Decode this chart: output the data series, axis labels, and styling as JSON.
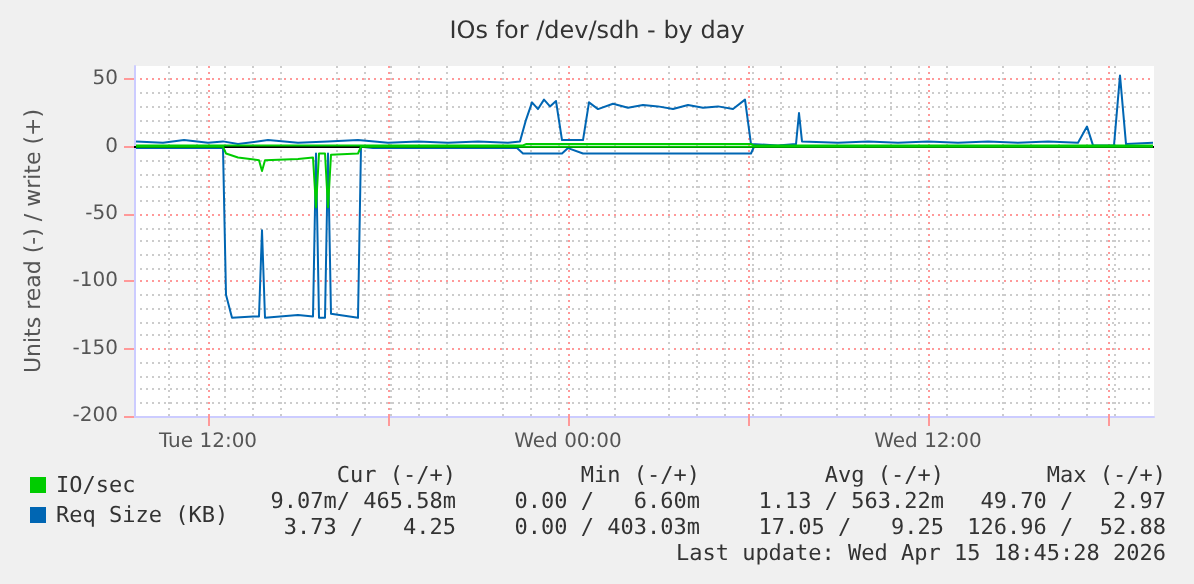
{
  "chart_data": {
    "type": "line",
    "title": "IOs for /dev/sdh - by day",
    "ylabel": "Units read (-) / write (+)",
    "xlim": [
      "2026-04-14T09:32",
      "2026-04-15T19:32"
    ],
    "xticks": [
      {
        "value": "2026-04-14T12:00",
        "label": "Tue 12:00"
      },
      {
        "value": "2026-04-14T18:00",
        "label": null
      },
      {
        "value": "2026-04-15T00:00",
        "label": "Wed 00:00"
      },
      {
        "value": "2026-04-15T06:00",
        "label": null
      },
      {
        "value": "2026-04-15T12:00",
        "label": "Wed 12:00"
      },
      {
        "value": "2026-04-15T18:00",
        "label": null
      }
    ],
    "ylim": [
      -200,
      60
    ],
    "yticks": [
      -200,
      -150,
      -100,
      -50,
      0,
      50
    ],
    "grid": true,
    "legend": "bottom left",
    "marker": "none",
    "line_style": "solid",
    "ref_lines": [
      {
        "axis": "y",
        "value": 0,
        "color": "#000000"
      }
    ],
    "annotations": [
      "Cur (-/+)",
      "Min (-/+)",
      "Avg (-/+)",
      "Max (-/+)",
      "9.07m/ 465.58m",
      "0.00 /   6.60m",
      "1.13 / 563.22m",
      "49.70 /   2.97",
      "3.73 /   4.25",
      "0.00 / 403.03m",
      "17.05 /   9.25",
      "126.96 /  52.88",
      "Last update: Wed Apr 15 18:45:28 2026"
    ],
    "series": [
      {
        "name": "IO/sec",
        "color": "#00cc00",
        "x": [
          "2026-04-14T09:36",
          "2026-04-14T22:30",
          "2026-04-14T22:36",
          "2026-04-15T06:06",
          "2026-04-15T06:12",
          "2026-04-15T19:30"
        ],
        "values": [
          1,
          1,
          2,
          2,
          1,
          1
        ]
      },
      {
        "color": "#00cc00",
        "x": [
          "2026-04-14T09:36",
          "2026-04-14T12:30",
          "2026-04-14T12:36",
          "2026-04-14T13:00",
          "2026-04-14T13:42",
          "2026-04-14T13:48",
          "2026-04-14T13:54",
          "2026-04-14T15:00",
          "2026-04-14T15:30",
          "2026-04-14T15:36",
          "2026-04-14T15:42",
          "2026-04-14T15:54",
          "2026-04-14T16:00",
          "2026-04-14T16:06",
          "2026-04-14T17:00",
          "2026-04-14T17:06",
          "2026-04-15T19:30"
        ],
        "values": [
          0,
          0,
          -5,
          -8,
          -10,
          -18,
          -10,
          -9,
          -8,
          -45,
          -5,
          -5,
          -45,
          -6,
          -5,
          0,
          0
        ]
      },
      {
        "name": "Req Size (KB)",
        "color": "#0066b3",
        "x": [
          "2026-04-14T09:36",
          "2026-04-14T10:30",
          "2026-04-14T11:12",
          "2026-04-14T12:00",
          "2026-04-14T12:30",
          "2026-04-14T13:00",
          "2026-04-14T14:00",
          "2026-04-14T15:00",
          "2026-04-14T16:00",
          "2026-04-14T17:00",
          "2026-04-14T18:00",
          "2026-04-14T19:00",
          "2026-04-14T20:00",
          "2026-04-14T21:00",
          "2026-04-14T22:00",
          "2026-04-14T22:24",
          "2026-04-14T22:36",
          "2026-04-14T22:48",
          "2026-04-14T23:00",
          "2026-04-14T23:12",
          "2026-04-14T23:24",
          "2026-04-14T23:36",
          "2026-04-14T23:48",
          "2026-04-15T00:30",
          "2026-04-15T00:42",
          "2026-04-15T01:00",
          "2026-04-15T01:30",
          "2026-04-15T02:00",
          "2026-04-15T02:30",
          "2026-04-15T03:00",
          "2026-04-15T03:30",
          "2026-04-15T04:00",
          "2026-04-15T04:30",
          "2026-04-15T05:00",
          "2026-04-15T05:30",
          "2026-04-15T05:54",
          "2026-04-15T06:06",
          "2026-04-15T07:00",
          "2026-04-15T07:36",
          "2026-04-15T07:42",
          "2026-04-15T07:48",
          "2026-04-15T09:00",
          "2026-04-15T10:00",
          "2026-04-15T11:00",
          "2026-04-15T12:00",
          "2026-04-15T13:00",
          "2026-04-15T14:00",
          "2026-04-15T15:00",
          "2026-04-15T16:00",
          "2026-04-15T17:00",
          "2026-04-15T17:18",
          "2026-04-15T17:30",
          "2026-04-15T18:12",
          "2026-04-15T18:24",
          "2026-04-15T18:36",
          "2026-04-15T19:30"
        ],
        "values": [
          4,
          3,
          5,
          3,
          4,
          2,
          5,
          3,
          4,
          5,
          3,
          4,
          3,
          4,
          3,
          4,
          20,
          33,
          28,
          35,
          30,
          34,
          5,
          5,
          33,
          28,
          32,
          29,
          31,
          30,
          28,
          31,
          29,
          30,
          28,
          35,
          2,
          1,
          2,
          25,
          4,
          3,
          4,
          3,
          4,
          3,
          4,
          3,
          4,
          3,
          15,
          1,
          1,
          53,
          2,
          3
        ]
      },
      {
        "color": "#0066b3",
        "x": [
          "2026-04-14T09:36",
          "2026-04-14T12:30",
          "2026-04-14T12:36",
          "2026-04-14T12:48",
          "2026-04-14T13:30",
          "2026-04-14T13:42",
          "2026-04-14T13:48",
          "2026-04-14T13:54",
          "2026-04-14T15:00",
          "2026-04-14T15:30",
          "2026-04-14T15:36",
          "2026-04-14T15:42",
          "2026-04-14T15:54",
          "2026-04-14T16:00",
          "2026-04-14T16:06",
          "2026-04-14T17:00",
          "2026-04-14T17:06",
          "2026-04-14T17:30",
          "2026-04-14T20:00",
          "2026-04-14T22:18",
          "2026-04-14T22:30",
          "2026-04-14T23:48",
          "2026-04-15T00:00",
          "2026-04-15T00:30",
          "2026-04-15T06:06",
          "2026-04-15T06:12",
          "2026-04-15T19:30"
        ],
        "values": [
          -1,
          -1,
          -110,
          -127,
          -126,
          -126,
          -62,
          -127,
          -125,
          -126,
          -5,
          -127,
          -127,
          -5,
          -124,
          -127,
          0,
          -1,
          -1,
          -1,
          -5,
          -5,
          -1,
          -5,
          -5,
          0,
          0
        ]
      }
    ]
  }
}
